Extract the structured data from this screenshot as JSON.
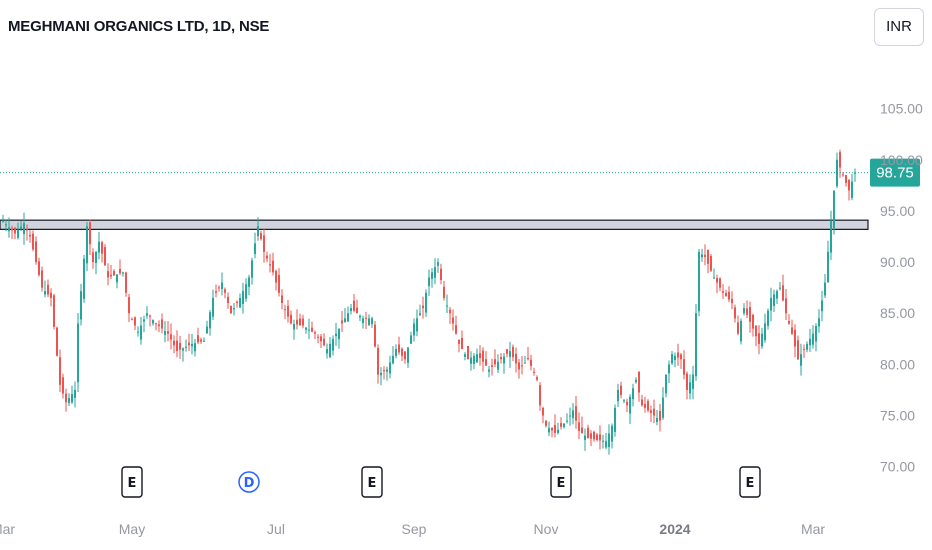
{
  "header": {
    "title": "MEGHMANI ORGANICS LTD, 1D, NSE",
    "currency": "INR"
  },
  "colors": {
    "up": "#26a69a",
    "down": "#ef5350",
    "last_price_line": "#26a69a",
    "zone_fill": "#d1d4dc",
    "zone_border": "#131722"
  },
  "chart_data": {
    "type": "candlestick",
    "symbol": "MEGHMANI ORGANICS LTD",
    "interval": "1D",
    "exchange": "NSE",
    "currency": "INR",
    "last_price": 98.75,
    "last_price_label": "98.75",
    "ylim": [
      68.5,
      108.0
    ],
    "y_ticks": [
      {
        "value": 105,
        "label": "105.00"
      },
      {
        "value": 100,
        "label": "100.00"
      },
      {
        "value": 95,
        "label": "95.00"
      },
      {
        "value": 90,
        "label": "90.00"
      },
      {
        "value": 85,
        "label": "85.00"
      },
      {
        "value": 80,
        "label": "80.00"
      },
      {
        "value": 75,
        "label": "75.00"
      },
      {
        "value": 70,
        "label": "70.00"
      }
    ],
    "x_ticks": [
      {
        "label": "Mar",
        "bar": 0,
        "bold": false
      },
      {
        "label": "May",
        "bar": 43,
        "bold": false
      },
      {
        "label": "Jul",
        "bar": 91,
        "bold": false
      },
      {
        "label": "Sep",
        "bar": 137,
        "bold": false
      },
      {
        "label": "Nov",
        "bar": 181,
        "bold": false
      },
      {
        "label": "2024",
        "bar": 224,
        "bold": true
      },
      {
        "label": "Mar",
        "bar": 270,
        "bold": false
      }
    ],
    "support_zone": {
      "low": 93.2,
      "high": 94.1
    },
    "events": [
      {
        "label": "E",
        "bar": 43,
        "kind": "earnings"
      },
      {
        "label": "D",
        "bar": 82,
        "kind": "dividend"
      },
      {
        "label": "E",
        "bar": 123,
        "kind": "earnings"
      },
      {
        "label": "E",
        "bar": 186,
        "kind": "earnings"
      },
      {
        "label": "E",
        "bar": 249,
        "kind": "earnings"
      }
    ],
    "anchors": [
      [
        0,
        94.0
      ],
      [
        4,
        92.8
      ],
      [
        7,
        93.8
      ],
      [
        9,
        92.5
      ],
      [
        11,
        90.0
      ],
      [
        13,
        87.5
      ],
      [
        16,
        86.5
      ],
      [
        19,
        78.0
      ],
      [
        21,
        76.3
      ],
      [
        24,
        77.5
      ],
      [
        25,
        84.0
      ],
      [
        28,
        93.5
      ],
      [
        30,
        90.0
      ],
      [
        32,
        92.0
      ],
      [
        35,
        88.5
      ],
      [
        40,
        89.0
      ],
      [
        42,
        85.0
      ],
      [
        45,
        83.2
      ],
      [
        48,
        85.0
      ],
      [
        51,
        84.0
      ],
      [
        55,
        83.0
      ],
      [
        58,
        81.3
      ],
      [
        63,
        82.0
      ],
      [
        67,
        82.3
      ],
      [
        70,
        86.5
      ],
      [
        73,
        88.0
      ],
      [
        76,
        85.0
      ],
      [
        79,
        86.5
      ],
      [
        82,
        88.5
      ],
      [
        85,
        93.5
      ],
      [
        87,
        91.0
      ],
      [
        90,
        89.0
      ],
      [
        93,
        86.0
      ],
      [
        96,
        84.0
      ],
      [
        100,
        83.8
      ],
      [
        104,
        83.0
      ],
      [
        108,
        81.5
      ],
      [
        112,
        83.5
      ],
      [
        116,
        85.5
      ],
      [
        120,
        84.5
      ],
      [
        123,
        84.5
      ],
      [
        125,
        79.0
      ],
      [
        128,
        79.5
      ],
      [
        131,
        81.5
      ],
      [
        134,
        80.5
      ],
      [
        137,
        84.0
      ],
      [
        140,
        85.5
      ],
      [
        142,
        88.5
      ],
      [
        145,
        90.0
      ],
      [
        147,
        86.5
      ],
      [
        149,
        85.0
      ],
      [
        152,
        82.0
      ],
      [
        155,
        80.5
      ],
      [
        158,
        81.0
      ],
      [
        162,
        79.5
      ],
      [
        166,
        80.5
      ],
      [
        169,
        81.3
      ],
      [
        172,
        79.5
      ],
      [
        175,
        80.5
      ],
      [
        178,
        78.5
      ],
      [
        179,
        76.0
      ],
      [
        181,
        74.0
      ],
      [
        184,
        73.3
      ],
      [
        188,
        74.5
      ],
      [
        190,
        75.5
      ],
      [
        192,
        73.5
      ],
      [
        195,
        72.8
      ],
      [
        198,
        72.6
      ],
      [
        201,
        72.5
      ],
      [
        203,
        74.0
      ],
      [
        205,
        77.5
      ],
      [
        208,
        76.0
      ],
      [
        211,
        78.5
      ],
      [
        213,
        76.0
      ],
      [
        217,
        75.0
      ],
      [
        219,
        74.5
      ],
      [
        221,
        79.0
      ],
      [
        223,
        81.0
      ],
      [
        226,
        80.5
      ],
      [
        228,
        77.5
      ],
      [
        230,
        79.0
      ],
      [
        232,
        91.0
      ],
      [
        234,
        90.5
      ],
      [
        237,
        88.5
      ],
      [
        240,
        87.0
      ],
      [
        243,
        86.0
      ],
      [
        245,
        83.0
      ],
      [
        247,
        85.5
      ],
      [
        250,
        83.5
      ],
      [
        252,
        82.0
      ],
      [
        254,
        84.0
      ],
      [
        256,
        86.5
      ],
      [
        259,
        87.5
      ],
      [
        261,
        85.0
      ],
      [
        263,
        83.0
      ],
      [
        265,
        80.5
      ],
      [
        268,
        82.0
      ],
      [
        270,
        83.0
      ],
      [
        272,
        84.5
      ],
      [
        274,
        88.0
      ],
      [
        276,
        94.0
      ],
      [
        278,
        100.0
      ],
      [
        280,
        98.5
      ],
      [
        282,
        97.0
      ],
      [
        284,
        98.75
      ]
    ]
  }
}
